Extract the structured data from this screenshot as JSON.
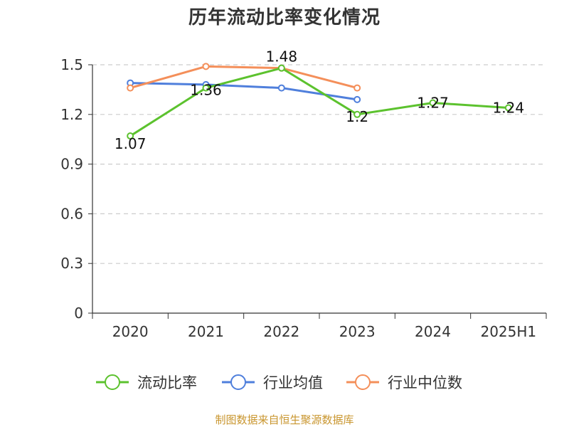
{
  "chart_data": {
    "type": "line",
    "title": "历年流动比率变化情况",
    "categories": [
      "2020",
      "2021",
      "2022",
      "2023",
      "2024",
      "2025H1"
    ],
    "ylim": [
      0,
      1.5
    ],
    "yticks": [
      "0",
      "0.3",
      "0.6",
      "0.9",
      "1.2",
      "1.5"
    ],
    "grid": true,
    "legend_position": "bottom",
    "series": [
      {
        "name": "流动比率",
        "color": "#5cc22e",
        "values": [
          1.07,
          1.36,
          1.48,
          1.2,
          1.27,
          1.24
        ],
        "labels": [
          "1.07",
          "1.36",
          "1.48",
          "1.2",
          "1.27",
          "1.24"
        ]
      },
      {
        "name": "行业均值",
        "color": "#4f7fdc",
        "values": [
          1.39,
          1.38,
          1.36,
          1.29,
          null,
          null
        ]
      },
      {
        "name": "行业中位数",
        "color": "#f48f5a",
        "values": [
          1.36,
          1.49,
          1.48,
          1.36,
          null,
          null
        ]
      }
    ]
  },
  "source_note": "制图数据来自恒生聚源数据库"
}
